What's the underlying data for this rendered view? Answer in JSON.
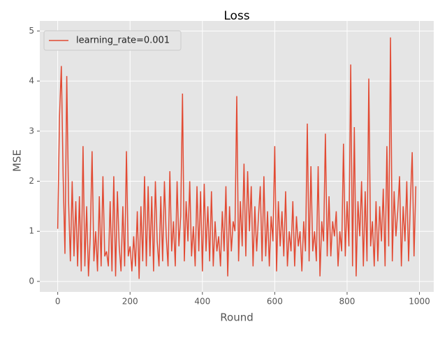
{
  "chart_data": {
    "type": "line",
    "title": "Loss",
    "x_label": "Round",
    "y_label": "MSE",
    "xlim": [
      -49.5,
      1039.5
    ],
    "ylim": [
      -0.21,
      5.2
    ],
    "xticks": [
      0,
      200,
      400,
      600,
      800,
      1000
    ],
    "yticks": [
      0,
      1,
      2,
      3,
      4,
      5
    ],
    "grid": true,
    "legend": "upper left",
    "x": [
      0,
      5,
      10,
      15,
      20,
      25,
      30,
      35,
      40,
      45,
      50,
      55,
      60,
      65,
      70,
      75,
      80,
      85,
      90,
      95,
      100,
      105,
      110,
      115,
      120,
      125,
      130,
      135,
      140,
      145,
      150,
      155,
      160,
      165,
      170,
      175,
      180,
      185,
      190,
      195,
      200,
      205,
      210,
      215,
      220,
      225,
      230,
      235,
      240,
      245,
      250,
      255,
      260,
      265,
      270,
      275,
      280,
      285,
      290,
      295,
      300,
      305,
      310,
      315,
      320,
      325,
      330,
      335,
      340,
      345,
      350,
      355,
      360,
      365,
      370,
      375,
      380,
      385,
      390,
      395,
      400,
      405,
      410,
      415,
      420,
      425,
      430,
      435,
      440,
      445,
      450,
      455,
      460,
      465,
      470,
      475,
      480,
      485,
      490,
      495,
      500,
      505,
      510,
      515,
      520,
      525,
      530,
      535,
      540,
      545,
      550,
      555,
      560,
      565,
      570,
      575,
      580,
      585,
      590,
      595,
      600,
      605,
      610,
      615,
      620,
      625,
      630,
      635,
      640,
      645,
      650,
      655,
      660,
      665,
      670,
      675,
      680,
      685,
      690,
      695,
      700,
      705,
      710,
      715,
      720,
      725,
      730,
      735,
      740,
      745,
      750,
      755,
      760,
      765,
      770,
      775,
      780,
      785,
      790,
      795,
      800,
      805,
      810,
      815,
      820,
      825,
      830,
      835,
      840,
      845,
      850,
      855,
      860,
      865,
      870,
      875,
      880,
      885,
      890,
      895,
      900,
      905,
      910,
      915,
      920,
      925,
      930,
      935,
      940,
      945,
      950,
      955,
      960,
      965,
      970,
      975,
      980,
      985,
      990
    ],
    "series": [
      {
        "name": "learning_rate=0.001",
        "color": "#E24A33",
        "values": [
          1.05,
          3.3,
          4.3,
          2.1,
          0.55,
          4.1,
          1.6,
          0.4,
          2.0,
          0.5,
          1.6,
          0.3,
          1.7,
          0.2,
          2.7,
          0.3,
          1.5,
          0.1,
          0.9,
          2.6,
          0.4,
          1.0,
          0.2,
          1.7,
          0.3,
          2.1,
          0.5,
          0.6,
          0.3,
          1.6,
          0.2,
          2.1,
          0.1,
          1.8,
          0.7,
          0.2,
          1.5,
          0.3,
          2.6,
          0.5,
          0.7,
          0.2,
          0.9,
          0.3,
          1.4,
          0.05,
          1.5,
          0.4,
          2.1,
          0.3,
          1.9,
          0.5,
          1.7,
          0.2,
          2.0,
          0.8,
          0.3,
          1.7,
          0.4,
          2.0,
          0.9,
          0.3,
          2.2,
          0.6,
          1.2,
          0.3,
          2.0,
          0.7,
          1.3,
          3.75,
          0.4,
          1.6,
          0.8,
          2.0,
          0.5,
          1.1,
          0.3,
          1.9,
          0.6,
          1.8,
          0.2,
          1.95,
          0.6,
          1.5,
          0.4,
          1.8,
          0.3,
          1.2,
          0.6,
          0.9,
          0.3,
          1.4,
          0.6,
          1.9,
          0.1,
          1.5,
          0.6,
          1.2,
          1.0,
          3.7,
          0.4,
          1.6,
          0.7,
          2.35,
          0.5,
          2.2,
          1.0,
          1.9,
          0.3,
          1.5,
          0.6,
          1.3,
          1.9,
          0.4,
          2.1,
          0.5,
          1.4,
          0.3,
          1.3,
          0.8,
          2.7,
          0.2,
          1.6,
          0.7,
          1.4,
          0.5,
          1.8,
          0.3,
          1.0,
          0.6,
          1.6,
          0.3,
          1.3,
          0.7,
          1.0,
          0.2,
          1.2,
          0.6,
          3.15,
          0.4,
          2.3,
          0.6,
          1.0,
          0.4,
          2.3,
          0.1,
          1.2,
          0.8,
          2.95,
          0.5,
          1.7,
          0.5,
          1.2,
          0.9,
          1.4,
          0.3,
          1.0,
          0.6,
          2.75,
          0.5,
          1.6,
          0.7,
          4.33,
          0.3,
          3.08,
          0.1,
          1.6,
          0.9,
          2.0,
          0.3,
          1.8,
          0.4,
          4.05,
          0.7,
          1.2,
          0.3,
          1.6,
          0.4,
          1.5,
          0.8,
          1.85,
          0.3,
          2.7,
          0.7,
          4.87,
          0.4,
          1.8,
          0.9,
          1.4,
          2.1,
          0.3,
          1.5,
          0.8,
          2.0,
          0.4,
          1.6,
          2.58,
          0.5,
          1.9
        ]
      }
    ]
  }
}
